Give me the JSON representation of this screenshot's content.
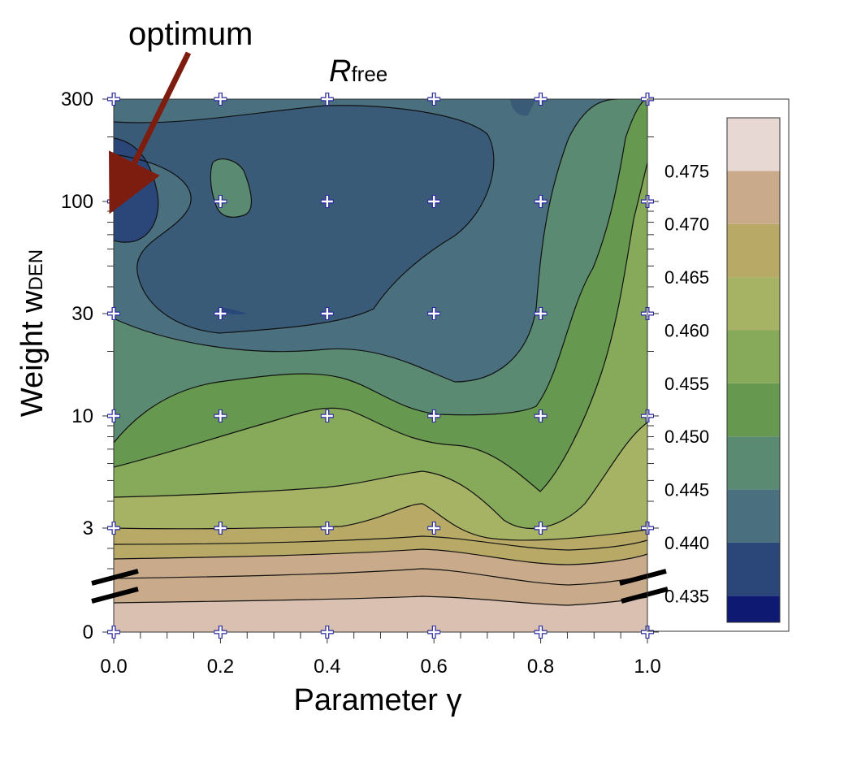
{
  "chart_data": {
    "type": "heatmap",
    "title": "R",
    "title_subscript": "free",
    "xlabel": "Parameter γ",
    "ylabel": "Weight w",
    "ylabel_subscript": "DEN",
    "xlim": [
      0.0,
      1.0
    ],
    "x_ticks": [
      "0.0",
      "0.2",
      "0.4",
      "0.6",
      "0.8",
      "1.0"
    ],
    "y_ticks": [
      "300",
      "100",
      "30",
      "10",
      "3",
      "0"
    ],
    "y_scale": "log with axis break between 3 and 0",
    "sample_points": {
      "x": [
        0.0,
        0.2,
        0.4,
        0.6,
        0.8,
        1.0
      ],
      "y": [
        300,
        100,
        30,
        10,
        3,
        0
      ]
    },
    "values_approx": [
      [
        0.444,
        0.443,
        0.443,
        0.443,
        0.444,
        0.447
      ],
      [
        0.436,
        0.447,
        0.443,
        0.443,
        0.445,
        0.452
      ],
      [
        0.446,
        0.442,
        0.443,
        0.445,
        0.447,
        0.454
      ],
      [
        0.447,
        0.451,
        0.453,
        0.451,
        0.451,
        0.457
      ],
      [
        0.465,
        0.462,
        0.462,
        0.461,
        0.46,
        0.463
      ],
      [
        0.478,
        0.478,
        0.478,
        0.478,
        0.478,
        0.478
      ]
    ],
    "colorbar": {
      "ticks": [
        "0.475",
        "0.470",
        "0.465",
        "0.460",
        "0.455",
        "0.450",
        "0.445",
        "0.440",
        "0.435"
      ],
      "levels": [
        0.4325,
        0.435,
        0.44,
        0.445,
        0.45,
        0.455,
        0.46,
        0.465,
        0.47,
        0.475,
        0.48
      ],
      "colors": [
        "#0e1a72",
        "#2b4679",
        "#4a707f",
        "#5a8a72",
        "#66984f",
        "#86a95a",
        "#a6b264",
        "#b8aa66",
        "#c9aa8a",
        "#e7d8d4"
      ]
    },
    "annotation": "optimum",
    "annotation_target": {
      "x": 0.0,
      "y": 100
    },
    "grid": false
  }
}
